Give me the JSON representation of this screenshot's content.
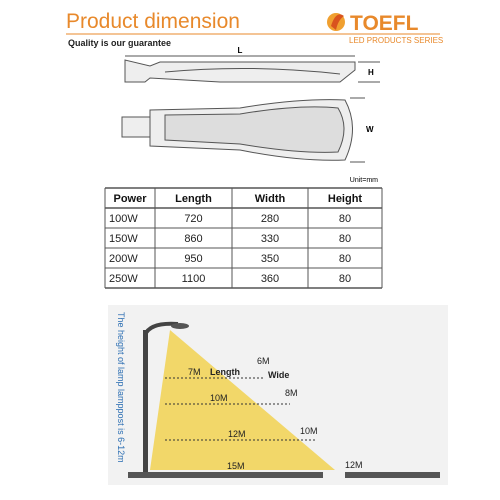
{
  "header": {
    "title": "Product dimension",
    "subtitle": "Quality is our guarantee",
    "brand": "TOEFL",
    "brand_tagline": "LED PRODUCTS SERIES"
  },
  "drawing": {
    "length_label": "L",
    "height_label": "H",
    "width_label": "W",
    "unit": "Unit=mm"
  },
  "table": {
    "columns": [
      "Power",
      "Length",
      "Width",
      "Height"
    ],
    "rows": [
      [
        "100W",
        "720",
        "280",
        "80"
      ],
      [
        "150W",
        "860",
        "330",
        "80"
      ],
      [
        "200W",
        "950",
        "350",
        "80"
      ],
      [
        "250W",
        "1100",
        "360",
        "80"
      ]
    ]
  },
  "diagram": {
    "pole_note": "The height of lamp lamppost is 6-12m",
    "labels": [
      "7M",
      "Length",
      "6M",
      "Wide",
      "10M",
      "8M",
      "12M",
      "10M",
      "15M",
      "12M"
    ]
  }
}
